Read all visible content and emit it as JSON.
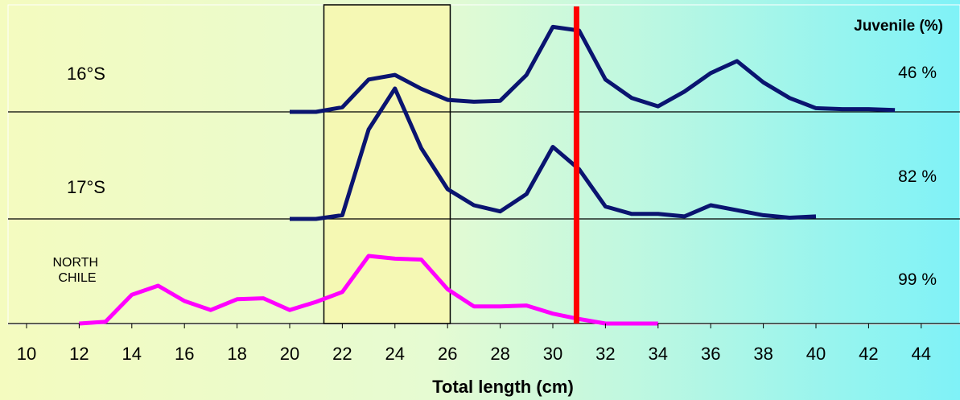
{
  "chart_data": {
    "type": "line",
    "xlabel": "Total length (cm)",
    "xlim": [
      10,
      44
    ],
    "xticks": [
      10,
      12,
      14,
      16,
      18,
      20,
      22,
      24,
      26,
      28,
      30,
      32,
      34,
      36,
      38,
      40,
      42,
      44
    ],
    "right_header": "Juvenile (%)",
    "highlight_range": [
      21.3,
      26.1
    ],
    "reference_line_x": 30.9,
    "panels": [
      {
        "label": "16°S",
        "juvenile_pct": "46 %",
        "color": "#0a1470",
        "points": [
          [
            20,
            0
          ],
          [
            21,
            0
          ],
          [
            22,
            5
          ],
          [
            23,
            35
          ],
          [
            24,
            40
          ],
          [
            25,
            25
          ],
          [
            26,
            13
          ],
          [
            27,
            11
          ],
          [
            28,
            12
          ],
          [
            29,
            40
          ],
          [
            30,
            92
          ],
          [
            31,
            88
          ],
          [
            32,
            35
          ],
          [
            33,
            15
          ],
          [
            34,
            6
          ],
          [
            35,
            22
          ],
          [
            36,
            42
          ],
          [
            37,
            55
          ],
          [
            38,
            32
          ],
          [
            39,
            15
          ],
          [
            40,
            4
          ],
          [
            41,
            3
          ],
          [
            42,
            3
          ],
          [
            43,
            2
          ]
        ]
      },
      {
        "label": "17°S",
        "juvenile_pct": "82 %",
        "color": "#0a1470",
        "points": [
          [
            20,
            0
          ],
          [
            21,
            0
          ],
          [
            22,
            3
          ],
          [
            23,
            72
          ],
          [
            24,
            105
          ],
          [
            25,
            57
          ],
          [
            26,
            24
          ],
          [
            27,
            11
          ],
          [
            28,
            6
          ],
          [
            29,
            20
          ],
          [
            30,
            58
          ],
          [
            31,
            40
          ],
          [
            32,
            10
          ],
          [
            33,
            4
          ],
          [
            34,
            4
          ],
          [
            35,
            2
          ],
          [
            36,
            11
          ],
          [
            37,
            7
          ],
          [
            38,
            3
          ],
          [
            39,
            1
          ],
          [
            40,
            2
          ]
        ]
      },
      {
        "label": "NORTH CHILE",
        "juvenile_pct": "99 %",
        "color": "#ff00ff",
        "points": [
          [
            12,
            0
          ],
          [
            13,
            2
          ],
          [
            14,
            32
          ],
          [
            15,
            42
          ],
          [
            16,
            25
          ],
          [
            17,
            15
          ],
          [
            18,
            27
          ],
          [
            19,
            28
          ],
          [
            20,
            15
          ],
          [
            21,
            24
          ],
          [
            22,
            35
          ],
          [
            23,
            75
          ],
          [
            24,
            72
          ],
          [
            25,
            71
          ],
          [
            26,
            38
          ],
          [
            27,
            19
          ],
          [
            28,
            19
          ],
          [
            29,
            20
          ],
          [
            30,
            11
          ],
          [
            31,
            5
          ],
          [
            32,
            0
          ],
          [
            33,
            0
          ],
          [
            34,
            0
          ]
        ]
      }
    ]
  }
}
